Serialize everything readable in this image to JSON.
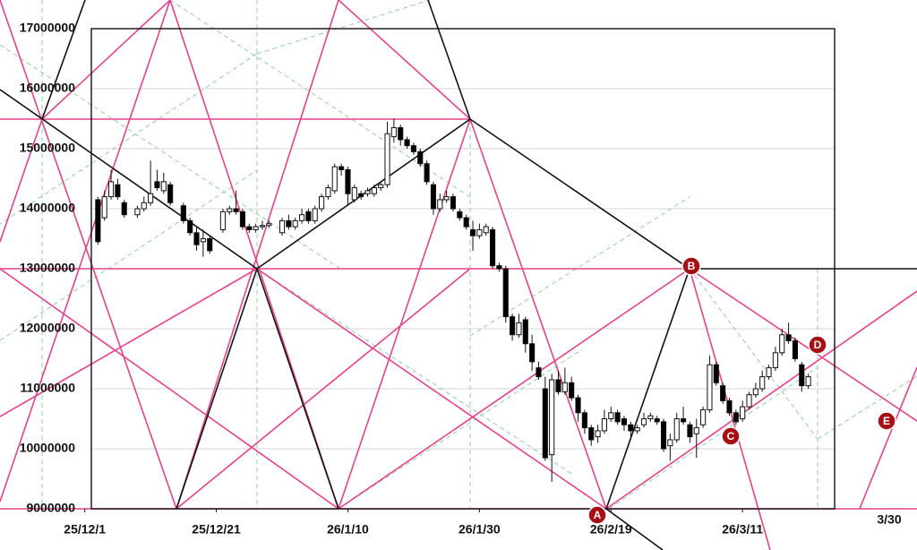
{
  "chart_data": {
    "type": "candlestick",
    "x": [
      2,
      3,
      4,
      5,
      6,
      8,
      9,
      10,
      11,
      12,
      13,
      15,
      16,
      17,
      18,
      19,
      21,
      22,
      23,
      24,
      25,
      26,
      27,
      28,
      30,
      31,
      32,
      33,
      34,
      35,
      36,
      37,
      38,
      39,
      40,
      41,
      42,
      43,
      44,
      45,
      46,
      47,
      48,
      49,
      50,
      51,
      52,
      53,
      54,
      55,
      56,
      57,
      58,
      59,
      60,
      61,
      62,
      63,
      64,
      65,
      66,
      67,
      68,
      69,
      70,
      71,
      72,
      73,
      74,
      75,
      76,
      77,
      78,
      79,
      80,
      81,
      82,
      83,
      84,
      85,
      86,
      87,
      88,
      89,
      90,
      91,
      92,
      93,
      94,
      95,
      96,
      97,
      98,
      99,
      100,
      101,
      102,
      103,
      104,
      105,
      106,
      107,
      108,
      109,
      110
    ],
    "open": [
      14150000,
      13850000,
      14200000,
      14400000,
      14100000,
      13900000,
      14000000,
      14100000,
      14450000,
      14300000,
      14400000,
      14050000,
      13800000,
      13600000,
      13450000,
      13500000,
      13650000,
      13950000,
      14000000,
      13950000,
      13700000,
      13650000,
      13700000,
      13720000,
      13600000,
      13800000,
      13700000,
      13800000,
      13950000,
      13800000,
      14000000,
      14200000,
      14300000,
      14700000,
      14650000,
      14150000,
      14250000,
      14250000,
      14250000,
      14350000,
      14400000,
      15200000,
      15350000,
      15150000,
      15050000,
      14950000,
      14750000,
      14400000,
      14000000,
      14150000,
      14200000,
      13950000,
      13850000,
      13650000,
      13550000,
      13600000,
      13650000,
      13050000,
      13000000,
      12200000,
      11900000,
      12150000,
      11750000,
      11350000,
      11000000,
      9900000,
      11150000,
      10950000,
      11100000,
      10850000,
      10600000,
      10350000,
      10200000,
      10300000,
      10500000,
      10600000,
      10500000,
      10400000,
      10300000,
      10400000,
      10500000,
      10500000,
      10450000,
      10050000,
      10150000,
      10500000,
      10400000,
      10250000,
      10400000,
      10650000,
      11400000,
      11050000,
      10800000,
      10600000,
      10500000,
      10700000,
      10900000,
      11000000,
      11200000,
      11350000,
      11600000,
      11900000,
      11800000,
      11400000,
      11050000
    ],
    "high": [
      14200000,
      14300000,
      14650000,
      14500000,
      14150000,
      14050000,
      14200000,
      14800000,
      14650000,
      14600000,
      14450000,
      14100000,
      13850000,
      13700000,
      13650000,
      13550000,
      14000000,
      14050000,
      14300000,
      14000000,
      13750000,
      13750000,
      13800000,
      13800000,
      13850000,
      13900000,
      13850000,
      14000000,
      14000000,
      14050000,
      14250000,
      14400000,
      14750000,
      14750000,
      14700000,
      14400000,
      14300000,
      14350000,
      14400000,
      14450000,
      15450000,
      15500000,
      15400000,
      15200000,
      15100000,
      15000000,
      14800000,
      14450000,
      14250000,
      14300000,
      14250000,
      14000000,
      13900000,
      13800000,
      13750000,
      13750000,
      13700000,
      13100000,
      13050000,
      12250000,
      12250000,
      12200000,
      11900000,
      11450000,
      11200000,
      11250000,
      11300000,
      11350000,
      11200000,
      10900000,
      10650000,
      10400000,
      10400000,
      10650000,
      10700000,
      10650000,
      10550000,
      10450000,
      10400000,
      10600000,
      10600000,
      10550000,
      10500000,
      10250000,
      10600000,
      10700000,
      10450000,
      10500000,
      10700000,
      11550000,
      11450000,
      11100000,
      10850000,
      10650000,
      10800000,
      10950000,
      11100000,
      11300000,
      11400000,
      11700000,
      12000000,
      12100000,
      11850000,
      11450000,
      11250000
    ],
    "low": [
      13400000,
      13800000,
      14150000,
      14150000,
      13850000,
      13850000,
      13950000,
      14050000,
      14300000,
      14250000,
      14050000,
      13750000,
      13550000,
      13300000,
      13200000,
      13250000,
      13600000,
      13900000,
      13900000,
      13650000,
      13600000,
      13600000,
      13650000,
      13680000,
      13550000,
      13650000,
      13650000,
      13750000,
      13750000,
      13750000,
      13950000,
      14150000,
      14250000,
      14550000,
      14050000,
      14100000,
      14150000,
      14200000,
      14200000,
      14300000,
      14350000,
      15100000,
      15050000,
      15000000,
      14900000,
      14700000,
      14400000,
      13900000,
      13950000,
      14100000,
      13950000,
      13800000,
      13650000,
      13300000,
      13500000,
      13550000,
      13000000,
      12950000,
      12100000,
      11800000,
      11850000,
      11600000,
      11300000,
      11150000,
      9800000,
      9450000,
      10900000,
      10900000,
      10800000,
      10450000,
      10250000,
      10050000,
      10100000,
      10250000,
      10450000,
      10400000,
      10300000,
      10200000,
      10250000,
      10350000,
      10450000,
      10400000,
      9950000,
      9800000,
      10100000,
      10400000,
      10100000,
      9850000,
      10350000,
      10600000,
      11050000,
      10750000,
      10550000,
      10400000,
      10450000,
      10650000,
      10850000,
      10950000,
      11150000,
      11300000,
      11550000,
      11750000,
      11450000,
      10950000,
      11000000
    ],
    "close": [
      13450000,
      14200000,
      14450000,
      14200000,
      13900000,
      14000000,
      14100000,
      14250000,
      14350000,
      14450000,
      14100000,
      13800000,
      13600000,
      13400000,
      13500000,
      13300000,
      13950000,
      14000000,
      13950000,
      13700000,
      13650000,
      13700000,
      13720000,
      13750000,
      13800000,
      13700000,
      13800000,
      13900000,
      13800000,
      14000000,
      14200000,
      14350000,
      14700000,
      14650000,
      14250000,
      14350000,
      14200000,
      14300000,
      14350000,
      14400000,
      15250000,
      15350000,
      15150000,
      15050000,
      14950000,
      14750000,
      14450000,
      14000000,
      14150000,
      14200000,
      14000000,
      13850000,
      13700000,
      13550000,
      13650000,
      13700000,
      13050000,
      13000000,
      12200000,
      11900000,
      12100000,
      11750000,
      11450000,
      11200000,
      9850000,
      11150000,
      10950000,
      11100000,
      10850000,
      10600000,
      10350000,
      10150000,
      10300000,
      10500000,
      10600000,
      10450000,
      10400000,
      10300000,
      10350000,
      10500000,
      10550000,
      10450000,
      10000000,
      10150000,
      10500000,
      10450000,
      10200000,
      10350000,
      10650000,
      11400000,
      11100000,
      10800000,
      10600000,
      10450000,
      10700000,
      10900000,
      11000000,
      11200000,
      11350000,
      11600000,
      11900000,
      11800000,
      11500000,
      11050000,
      11200000
    ],
    "xlim": [
      1,
      114
    ],
    "ylim": [
      9000000,
      17000000
    ],
    "yticks": [
      9000000,
      10000000,
      11000000,
      12000000,
      13000000,
      14000000,
      15000000,
      16000000,
      17000000
    ],
    "xticks": [
      {
        "value": 0,
        "label": "25/12/1"
      },
      {
        "value": 20,
        "label": "25/12/21"
      },
      {
        "value": 40,
        "label": "26/1/10"
      },
      {
        "value": 60,
        "label": "26/1/30"
      },
      {
        "value": 80,
        "label": "26/2/19"
      },
      {
        "value": 100,
        "label": "26/3/11"
      }
    ],
    "grid": true,
    "up_color": "#ffffff",
    "down_color": "#000000",
    "annotations": [
      {
        "text": "A"
      },
      {
        "text": "B"
      },
      {
        "text": "C"
      },
      {
        "text": "D"
      },
      {
        "text": "E"
      },
      {
        "text": "3/30"
      }
    ]
  }
}
